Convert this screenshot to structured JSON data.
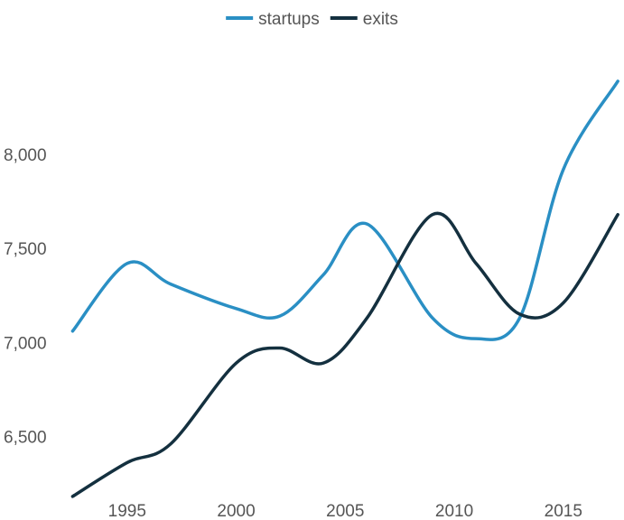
{
  "chart_data": {
    "type": "line",
    "title": "",
    "xlabel": "",
    "ylabel": "",
    "legend_position": "top-center",
    "grid": false,
    "x_ticks": [
      1995,
      2000,
      2005,
      2010,
      2015
    ],
    "y_ticks": [
      6500,
      7000,
      7500,
      8000
    ],
    "y_tick_labels": [
      "6,500",
      "7,000",
      "7,500",
      "8,000"
    ],
    "x_tick_labels": [
      "1995",
      "2000",
      "2005",
      "2010",
      "2015"
    ],
    "xlim": [
      1992.4,
      2017.7
    ],
    "ylim": [
      6170,
      8630
    ],
    "series": [
      {
        "name": "startups",
        "color": "#2a8fc4",
        "x": [
          1992.5,
          1995,
          1997,
          2000,
          2002,
          2004,
          2006,
          2009,
          2011,
          2013,
          2015,
          2017.5
        ],
        "y": [
          7060,
          7420,
          7310,
          7180,
          7140,
          7360,
          7630,
          7130,
          7020,
          7130,
          7920,
          8390
        ]
      },
      {
        "name": "exits",
        "color": "#14303f",
        "x": [
          1992.5,
          1995,
          1997,
          2000,
          2002,
          2004,
          2006,
          2009,
          2011,
          2013,
          2015,
          2017.5
        ],
        "y": [
          6180,
          6360,
          6460,
          6890,
          6970,
          6890,
          7130,
          7680,
          7420,
          7150,
          7210,
          7680
        ]
      }
    ]
  }
}
